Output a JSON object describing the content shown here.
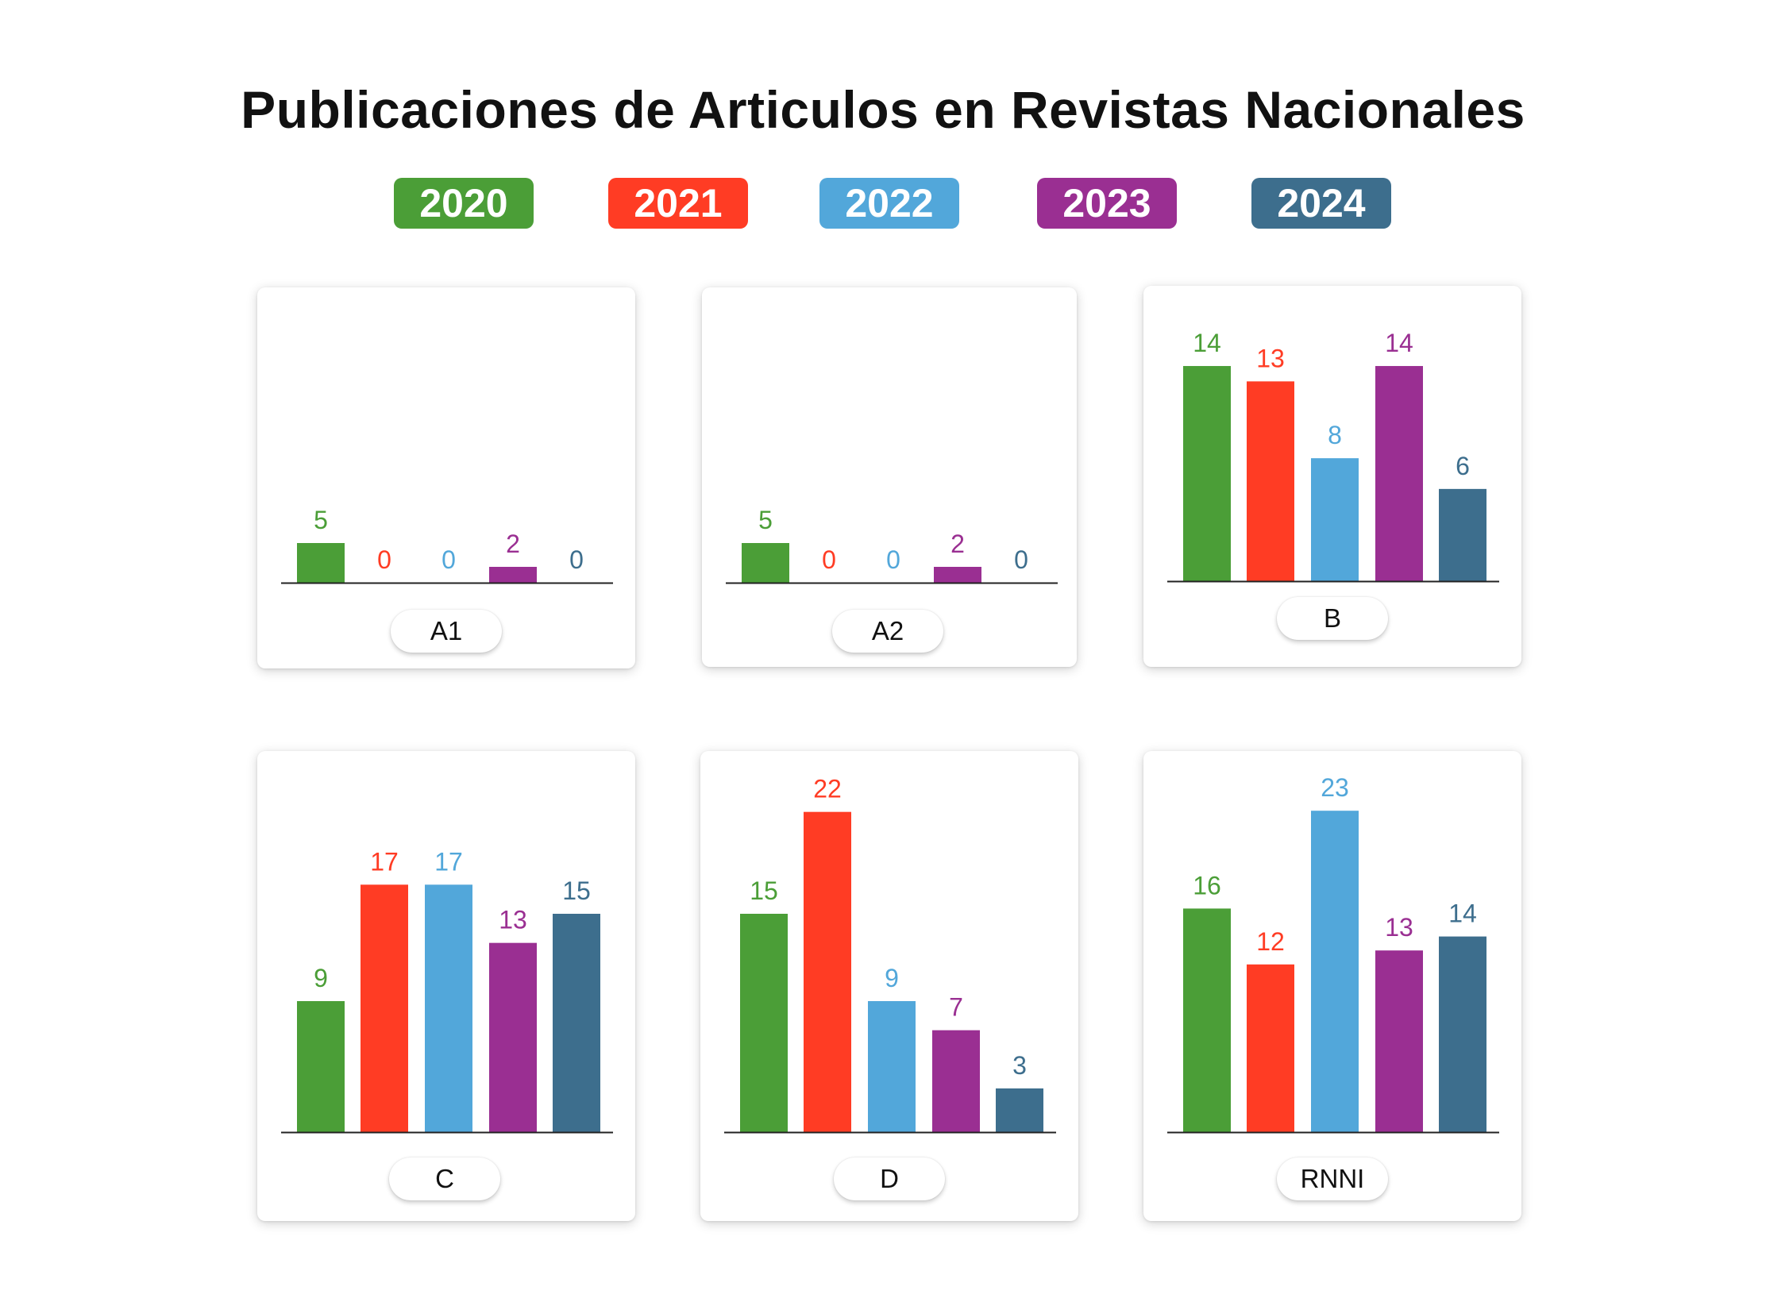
{
  "title": "Publicaciones de Articulos en Revistas Nacionales",
  "legend": [
    {
      "label": "2020",
      "color": "#4b9e37"
    },
    {
      "label": "2021",
      "color": "#ff3c24"
    },
    {
      "label": "2022",
      "color": "#52a7da"
    },
    {
      "label": "2023",
      "color": "#9a2f92"
    },
    {
      "label": "2024",
      "color": "#3d6e8d"
    }
  ],
  "chart_data": [
    {
      "type": "bar",
      "category": "A1",
      "series": [
        "2020",
        "2021",
        "2022",
        "2023",
        "2024"
      ],
      "values": [
        5,
        0,
        0,
        2,
        0
      ],
      "ylim": [
        0,
        24
      ]
    },
    {
      "type": "bar",
      "category": "A2",
      "series": [
        "2020",
        "2021",
        "2022",
        "2023",
        "2024"
      ],
      "values": [
        5,
        0,
        0,
        2,
        0
      ],
      "ylim": [
        0,
        24
      ]
    },
    {
      "type": "bar",
      "category": "B",
      "series": [
        "2020",
        "2021",
        "2022",
        "2023",
        "2024"
      ],
      "values": [
        14,
        13,
        8,
        14,
        6
      ],
      "ylim": [
        0,
        15.5
      ]
    },
    {
      "type": "bar",
      "category": "C",
      "series": [
        "2020",
        "2021",
        "2022",
        "2023",
        "2024"
      ],
      "values": [
        9,
        17,
        17,
        13,
        15
      ],
      "ylim": [
        0,
        24
      ]
    },
    {
      "type": "bar",
      "category": "D",
      "series": [
        "2020",
        "2021",
        "2022",
        "2023",
        "2024"
      ],
      "values": [
        15,
        22,
        9,
        7,
        3
      ],
      "ylim": [
        0,
        24
      ]
    },
    {
      "type": "bar",
      "category": "RNNI",
      "series": [
        "2020",
        "2021",
        "2022",
        "2023",
        "2024"
      ],
      "values": [
        16,
        12,
        23,
        13,
        14
      ],
      "ylim": [
        0,
        25
      ]
    }
  ]
}
